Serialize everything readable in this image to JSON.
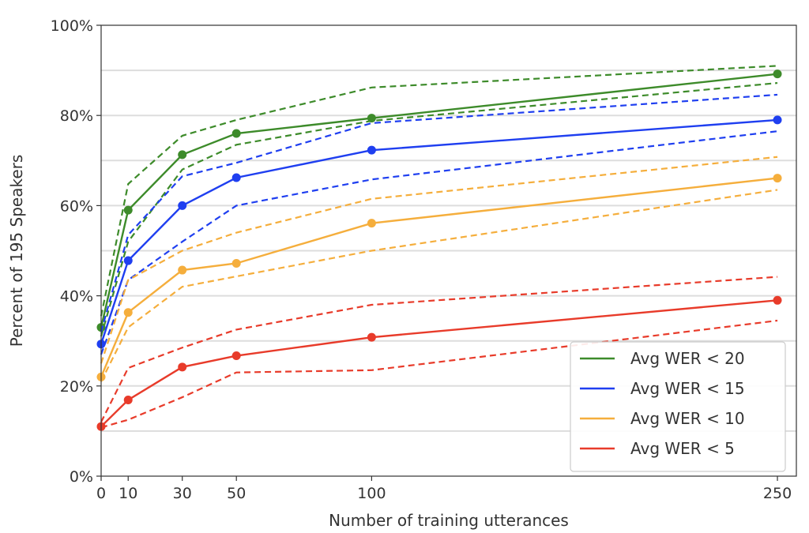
{
  "chart_data": {
    "type": "line",
    "xlabel": "Number of training utterances",
    "ylabel": "Percent of 195 Speakers",
    "x": [
      0,
      10,
      30,
      50,
      100,
      250
    ],
    "xticks": [
      0,
      10,
      30,
      50,
      100,
      250
    ],
    "xtick_labels": [
      "0",
      "10",
      "30",
      "50",
      "100",
      "250"
    ],
    "xlim": [
      0,
      257
    ],
    "ylim": [
      0,
      100
    ],
    "yticks": [
      0,
      20,
      40,
      60,
      80,
      100
    ],
    "ytick_labels": [
      "0%",
      "20%",
      "40%",
      "60%",
      "80%",
      "100%"
    ],
    "grid": "horizontal",
    "legend_position": "lower-right",
    "series": [
      {
        "name": "Avg WER < 20",
        "color": "#3d8b2a",
        "values": [
          33,
          59,
          71.3,
          76,
          79.4,
          89.2
        ],
        "upper": [
          35.5,
          64.8,
          75.5,
          79,
          86.2,
          91
        ],
        "lower": [
          31,
          52,
          68,
          73.5,
          78.8,
          87.2
        ]
      },
      {
        "name": "Avg WER < 15",
        "color": "#1f3ff0",
        "values": [
          29.3,
          47.8,
          60,
          66.2,
          72.3,
          79
        ],
        "upper": [
          32,
          53.5,
          66.5,
          69.5,
          78.3,
          84.6
        ],
        "lower": [
          27,
          43.5,
          52,
          60,
          65.8,
          76.5
        ]
      },
      {
        "name": "Avg WER < 10",
        "color": "#f5ae3c",
        "values": [
          22,
          36.3,
          45.7,
          47.2,
          56.1,
          66.1
        ],
        "upper": [
          25,
          43.5,
          50,
          54,
          61.5,
          70.8
        ],
        "lower": [
          21,
          33,
          42,
          44.3,
          50,
          63.5
        ]
      },
      {
        "name": "Avg WER < 5",
        "color": "#e83b2a",
        "values": [
          11,
          16.9,
          24.2,
          26.7,
          30.8,
          39
        ],
        "upper": [
          12,
          24,
          28.5,
          32.5,
          38,
          44.2
        ],
        "lower": [
          10.8,
          12.5,
          17.5,
          23,
          23.5,
          34.5
        ]
      }
    ]
  }
}
